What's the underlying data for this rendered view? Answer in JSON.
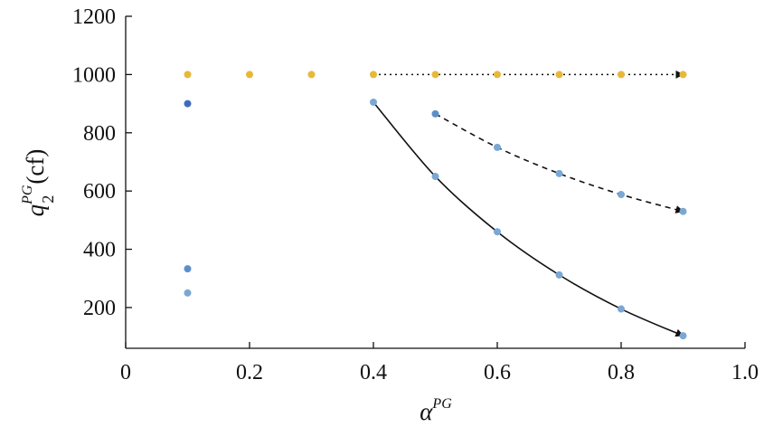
{
  "chart_data": {
    "type": "scatter",
    "title": "",
    "xlabel": {
      "base": "α",
      "sup": "PG"
    },
    "ylabel": {
      "base": "q",
      "sub": "2",
      "sup": "PG",
      "unit": "(cf)"
    },
    "xlim": [
      0,
      1.0
    ],
    "ylim": [
      60,
      1200
    ],
    "xticks": [
      0,
      0.2,
      0.4,
      0.6,
      0.8,
      1.0
    ],
    "xtick_labels": [
      "0",
      "0.2",
      "0.4",
      "0.6",
      "0.8",
      "1.0"
    ],
    "yticks": [
      200,
      400,
      600,
      800,
      1000,
      1200
    ],
    "ytick_labels": [
      "200",
      "400",
      "600",
      "800",
      "1000",
      "1200"
    ],
    "grid": false,
    "legend": "none",
    "colors": {
      "gold": "#E8B83A",
      "light_blue": "#7BA7D4",
      "mid_blue": "#5D8ECC",
      "dark_blue": "#3F6CB8",
      "line": "#111111"
    },
    "series": [
      {
        "color_key": "gold",
        "points": [
          {
            "x": 0.1,
            "y": 1000
          },
          {
            "x": 0.2,
            "y": 1000
          },
          {
            "x": 0.3,
            "y": 1000
          },
          {
            "x": 0.4,
            "y": 1000
          },
          {
            "x": 0.5,
            "y": 1000
          },
          {
            "x": 0.6,
            "y": 1000
          },
          {
            "x": 0.7,
            "y": 1000
          },
          {
            "x": 0.8,
            "y": 1000
          },
          {
            "x": 0.9,
            "y": 1000
          }
        ]
      },
      {
        "color_key": "dark_blue",
        "points": [
          {
            "x": 0.1,
            "y": 900
          }
        ]
      },
      {
        "color_key": "mid_blue",
        "points": [
          {
            "x": 0.1,
            "y": 333
          },
          {
            "x": 0.5,
            "y": 865
          }
        ]
      },
      {
        "color_key": "light_blue",
        "points": [
          {
            "x": 0.1,
            "y": 250
          },
          {
            "x": 0.4,
            "y": 905
          },
          {
            "x": 0.5,
            "y": 650
          },
          {
            "x": 0.6,
            "y": 460
          },
          {
            "x": 0.7,
            "y": 312
          },
          {
            "x": 0.8,
            "y": 195
          },
          {
            "x": 0.9,
            "y": 103
          },
          {
            "x": 0.6,
            "y": 750
          },
          {
            "x": 0.7,
            "y": 660
          },
          {
            "x": 0.8,
            "y": 588
          },
          {
            "x": 0.9,
            "y": 530
          }
        ]
      }
    ],
    "trend_lines": [
      {
        "style": "dotted",
        "arrow": true,
        "points": [
          {
            "x": 0.4,
            "y": 1000
          },
          {
            "x": 0.9,
            "y": 1000
          }
        ]
      },
      {
        "style": "dashed",
        "arrow": true,
        "points": [
          {
            "x": 0.5,
            "y": 865
          },
          {
            "x": 0.6,
            "y": 750
          },
          {
            "x": 0.7,
            "y": 660
          },
          {
            "x": 0.8,
            "y": 588
          },
          {
            "x": 0.9,
            "y": 530
          }
        ]
      },
      {
        "style": "solid",
        "arrow": true,
        "points": [
          {
            "x": 0.4,
            "y": 905
          },
          {
            "x": 0.5,
            "y": 650
          },
          {
            "x": 0.6,
            "y": 460
          },
          {
            "x": 0.7,
            "y": 312
          },
          {
            "x": 0.8,
            "y": 195
          },
          {
            "x": 0.9,
            "y": 103
          }
        ]
      }
    ]
  }
}
